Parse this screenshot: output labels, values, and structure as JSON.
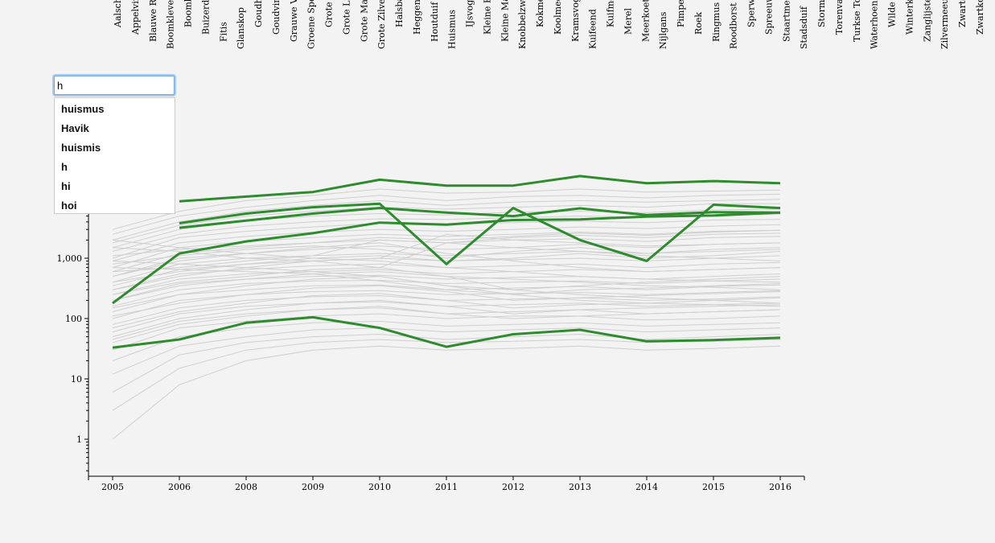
{
  "search": {
    "value": "h",
    "suggestions": [
      "huismus",
      "Havik",
      "huismis",
      "h",
      "hi",
      "hoi"
    ]
  },
  "colors": {
    "highlight": "#2e8b2e",
    "background_lines": "#cfcfcf",
    "background": "#f3f3f3"
  },
  "species_labels": [
    "Aalscholver",
    "Appelvink",
    "Blauwe Reiger",
    "Boomklever",
    "Boomkruiper",
    "Buizerd",
    "Fitis",
    "Glanskop",
    "Goudhaan",
    "Goudvink",
    "Grauwe Vliegenvanger",
    "Groene Specht",
    "Grote Bonte Specht",
    "Grote Lijster",
    "Grote Mantelmeeuw",
    "Grote Zilverreiger",
    "Halsbandparkiet",
    "Heggenmus",
    "Houtduif",
    "Huismus",
    "IJsvogel",
    "Kleine Bonte Specht",
    "Kleine Mantelmeeuw",
    "Knobbelzwaan",
    "Kokmeeuw",
    "Koolmees",
    "Kramsvogel",
    "Kuifeend",
    "Kuifmees",
    "Merel",
    "Meerkoet",
    "Nijlgans",
    "Pimpelmees",
    "Roek",
    "Ringmus",
    "Roodborst",
    "Sperwer",
    "Spreeuw",
    "Staartmees",
    "Stadsduif",
    "Stormmeeuw",
    "Torenvalk",
    "Turkse Tortel",
    "Waterhoen",
    "Wilde Eend",
    "Winterkoning",
    "Zanglijster",
    "Zilvermeeuw",
    "Zwarte Kraai",
    "Zwartkop"
  ],
  "chart_data": {
    "type": "line",
    "x_scale": "ordinal",
    "y_scale": "log",
    "categories": [
      "2005",
      "2006",
      "2008",
      "2009",
      "2010",
      "2011",
      "2012",
      "2013",
      "2014",
      "2015",
      "2016"
    ],
    "y_ticks": [
      "1",
      "10",
      "100",
      "1,000"
    ],
    "ylim": [
      0.3,
      30000
    ],
    "highlighted_series": [
      {
        "values": [
          null,
          8800,
          10500,
          12500,
          20000,
          16000,
          16000,
          23000,
          17500,
          19000,
          17500
        ]
      },
      {
        "values": [
          null,
          3800,
          5500,
          7000,
          8000,
          800,
          6800,
          2000,
          900,
          7700,
          6800
        ]
      },
      {
        "values": [
          null,
          3200,
          4200,
          5500,
          6800,
          5700,
          5000,
          6700,
          5200,
          5800,
          5700
        ]
      },
      {
        "values": [
          180,
          1200,
          1900,
          2600,
          3900,
          3600,
          4300,
          4400,
          4900,
          5100,
          5700
        ]
      },
      {
        "values": [
          33,
          45,
          85,
          105,
          70,
          34,
          55,
          65,
          42,
          44,
          48
        ]
      }
    ],
    "background_series": [
      [
        3000,
        6000,
        9000,
        11000,
        14000,
        12000,
        12500,
        14000,
        12500,
        13000,
        13500
      ],
      [
        2500,
        5000,
        7000,
        9000,
        11000,
        9000,
        10500,
        11000,
        10000,
        11000,
        11500
      ],
      [
        2000,
        4000,
        6000,
        7500,
        9000,
        7500,
        8500,
        9000,
        8500,
        9000,
        9500
      ],
      [
        1800,
        3500,
        5000,
        6000,
        7000,
        6500,
        7000,
        7500,
        7000,
        8000,
        8000
      ],
      [
        1500,
        3000,
        4200,
        5000,
        5500,
        5200,
        5800,
        6000,
        5700,
        6300,
        6500
      ],
      [
        1300,
        2500,
        3400,
        4000,
        4500,
        4400,
        4700,
        5000,
        4800,
        5200,
        5400
      ],
      [
        1000,
        2200,
        2800,
        3300,
        3800,
        3600,
        3900,
        4100,
        3900,
        4300,
        4400
      ],
      [
        900,
        1800,
        2300,
        2700,
        3000,
        2800,
        3000,
        3300,
        3100,
        3400,
        3600
      ],
      [
        700,
        1500,
        1900,
        2200,
        2500,
        2300,
        2500,
        2700,
        2500,
        2800,
        2900
      ],
      [
        600,
        1200,
        1500,
        1800,
        2000,
        1800,
        2000,
        2100,
        1900,
        2200,
        2300
      ],
      [
        500,
        1000,
        1200,
        1400,
        1600,
        1400,
        1500,
        1700,
        1500,
        1700,
        1800
      ],
      [
        400,
        800,
        1000,
        1100,
        1200,
        1100,
        1200,
        1300,
        1200,
        1300,
        1400
      ],
      [
        350,
        650,
        800,
        900,
        1000,
        900,
        950,
        1000,
        900,
        1000,
        1100
      ],
      [
        300,
        550,
        650,
        750,
        800,
        700,
        750,
        800,
        700,
        800,
        850
      ],
      [
        250,
        450,
        550,
        600,
        650,
        550,
        600,
        650,
        600,
        650,
        700
      ],
      [
        200,
        380,
        450,
        500,
        520,
        450,
        480,
        500,
        450,
        500,
        550
      ],
      [
        160,
        300,
        380,
        420,
        430,
        380,
        400,
        420,
        380,
        420,
        450
      ],
      [
        130,
        250,
        300,
        350,
        360,
        300,
        320,
        340,
        300,
        340,
        360
      ],
      [
        100,
        200,
        250,
        280,
        290,
        250,
        260,
        270,
        250,
        270,
        290
      ],
      [
        80,
        150,
        200,
        230,
        240,
        200,
        210,
        220,
        200,
        210,
        230
      ],
      [
        60,
        120,
        160,
        180,
        190,
        160,
        170,
        180,
        160,
        170,
        180
      ],
      [
        45,
        90,
        120,
        140,
        150,
        120,
        130,
        140,
        120,
        130,
        140
      ],
      [
        30,
        70,
        90,
        110,
        120,
        100,
        110,
        110,
        95,
        100,
        110
      ],
      [
        20,
        50,
        70,
        85,
        90,
        75,
        80,
        85,
        75,
        80,
        85
      ],
      [
        12,
        35,
        50,
        65,
        70,
        60,
        65,
        70,
        60,
        65,
        70
      ],
      [
        6,
        25,
        40,
        50,
        55,
        45,
        50,
        55,
        45,
        50,
        55
      ],
      [
        3,
        15,
        30,
        40,
        45,
        40,
        42,
        45,
        40,
        42,
        45
      ],
      [
        1,
        8,
        20,
        30,
        35,
        30,
        32,
        35,
        30,
        32,
        35
      ],
      [
        2000,
        1500,
        1200,
        1000,
        900,
        700,
        600,
        500,
        450,
        420,
        400
      ],
      [
        1500,
        1300,
        1000,
        900,
        700,
        500,
        450,
        400,
        350,
        330,
        300
      ],
      [
        900,
        800,
        700,
        600,
        500,
        350,
        300,
        250,
        220,
        200,
        180
      ],
      [
        700,
        650,
        600,
        550,
        420,
        300,
        250,
        200,
        180,
        170,
        160
      ],
      [
        500,
        900,
        1200,
        1500,
        1800,
        1200,
        900,
        700,
        600,
        650,
        700
      ],
      [
        800,
        1100,
        1400,
        1600,
        1400,
        1000,
        1300,
        1500,
        1200,
        1400,
        1500
      ],
      [
        400,
        600,
        800,
        1000,
        1100,
        900,
        1000,
        1200,
        1000,
        1100,
        1300
      ],
      [
        300,
        500,
        700,
        900,
        1000,
        2500,
        2000,
        1800,
        1600,
        1700,
        1800
      ],
      [
        600,
        700,
        900,
        1100,
        2000,
        1800,
        2200,
        2400,
        2200,
        2500,
        2600
      ],
      [
        1100,
        1400,
        1600,
        1800,
        2200,
        2000,
        2300,
        2600,
        2400,
        2700,
        2900
      ],
      [
        250,
        400,
        500,
        650,
        700,
        1800,
        1500,
        1300,
        1100,
        1000,
        900
      ],
      [
        200,
        350,
        450,
        550,
        600,
        500,
        300,
        350,
        400,
        450,
        500
      ],
      [
        150,
        250,
        350,
        450,
        500,
        350,
        250,
        300,
        320,
        350,
        380
      ],
      [
        110,
        180,
        250,
        320,
        350,
        280,
        200,
        220,
        240,
        260,
        280
      ],
      [
        70,
        130,
        180,
        240,
        260,
        200,
        150,
        170,
        180,
        200,
        220
      ],
      [
        50,
        100,
        140,
        180,
        200,
        160,
        120,
        140,
        150,
        160,
        170
      ],
      [
        40,
        80,
        110,
        140,
        160,
        120,
        100,
        110,
        120,
        130,
        140
      ]
    ]
  }
}
